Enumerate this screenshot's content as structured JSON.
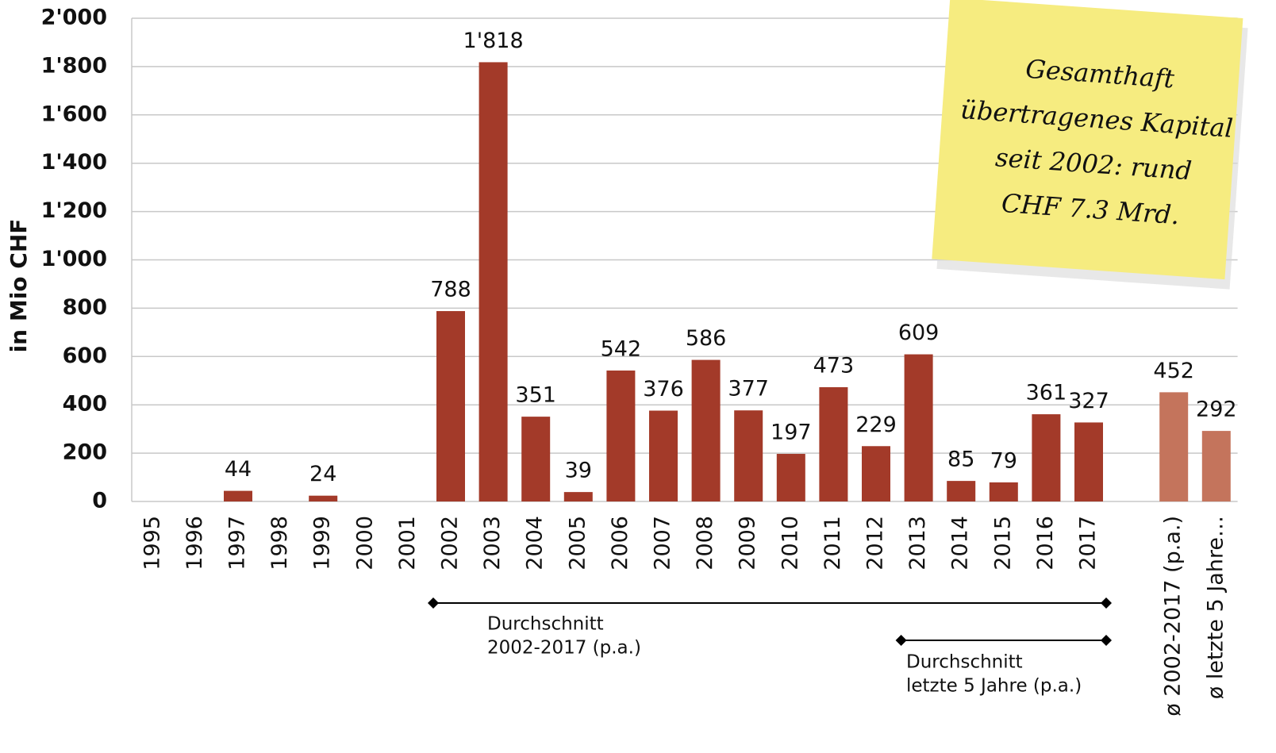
{
  "chart_data": {
    "type": "bar",
    "y_axis_label": "in Mio CHF",
    "categories": [
      "1995",
      "1996",
      "1997",
      "1998",
      "1999",
      "2000",
      "2001",
      "2002",
      "2003",
      "2004",
      "2005",
      "2006",
      "2007",
      "2008",
      "2009",
      "2010",
      "2011",
      "2012",
      "2013",
      "2014",
      "2015",
      "2016",
      "2017",
      null,
      "ø 2002-2017 (p.a.)",
      "ø letzte 5 Jahre…"
    ],
    "values": [
      null,
      null,
      44,
      null,
      24,
      null,
      null,
      788,
      1818,
      351,
      39,
      542,
      376,
      586,
      377,
      197,
      473,
      229,
      609,
      85,
      79,
      361,
      327,
      null,
      452,
      292
    ],
    "value_labels": [
      null,
      null,
      "44",
      null,
      "24",
      null,
      null,
      "788",
      "1'818",
      "351",
      "39",
      "542",
      "376",
      "586",
      "377",
      "197",
      "473",
      "229",
      "609",
      "85",
      "79",
      "361",
      "327",
      null,
      "452",
      "292"
    ],
    "colors": [
      "#a33a29",
      "#a33a29",
      "#a33a29",
      "#a33a29",
      "#a33a29",
      "#a33a29",
      "#a33a29",
      "#a33a29",
      "#a33a29",
      "#a33a29",
      "#a33a29",
      "#a33a29",
      "#a33a29",
      "#a33a29",
      "#a33a29",
      "#a33a29",
      "#a33a29",
      "#a33a29",
      "#a33a29",
      "#a33a29",
      "#a33a29",
      "#a33a29",
      "#a33a29",
      "#a33a29",
      "#c4745c",
      "#c4745c"
    ],
    "ylim": [
      0,
      2000
    ],
    "yticks": [
      0,
      200,
      400,
      600,
      800,
      {
        "value": 1000,
        "label": "1'000"
      },
      {
        "value": 1200,
        "label": "1'200"
      },
      {
        "value": 1400,
        "label": "1'400"
      },
      {
        "value": 1600,
        "label": "1'600"
      },
      {
        "value": 1800,
        "label": "1'800"
      },
      {
        "value": 2000,
        "label": "2'000"
      }
    ],
    "grid": true,
    "annotations": [
      {
        "lines": [
          "Durchschnitt",
          "2002-2017 (p.a.)"
        ]
      },
      {
        "lines": [
          "Durchschnitt",
          "letzte 5 Jahre (p.a.)"
        ]
      }
    ],
    "note_lines": [
      "Gesamthaft",
      "übertragenes Kapital",
      "seit 2002: rund",
      "CHF 7.3 Mrd."
    ]
  }
}
